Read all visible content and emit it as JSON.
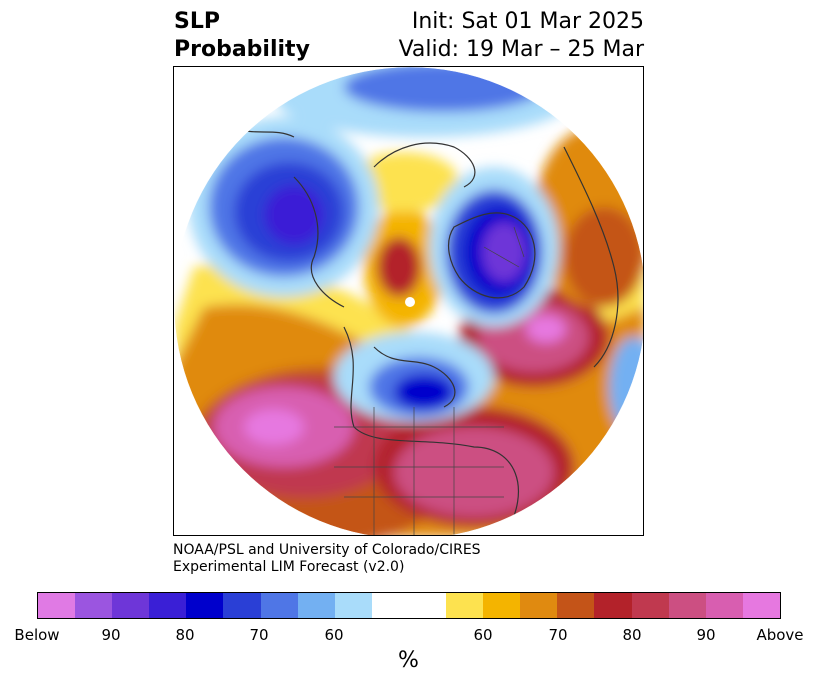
{
  "header": {
    "title_line1": "SLP",
    "title_line2": "Probability",
    "init": "Init: Sat 01 Mar 2025",
    "valid": "Valid: 19 Mar – 25 Mar"
  },
  "credit": {
    "line1": "NOAA/PSL and University of Colorado/CIRES",
    "line2": "Experimental LIM Forecast (v2.0)"
  },
  "colorbar": {
    "colors": [
      "#e07ae4",
      "#9b55e0",
      "#6e36d8",
      "#3a1fd6",
      "#0000cc",
      "#2a3fd6",
      "#4f76e6",
      "#73b0f2",
      "#a9dcfa",
      "#ffffff",
      "#ffffff",
      "#fde24f",
      "#f4b400",
      "#e08a10",
      "#c45418",
      "#b3222a",
      "#c0394f",
      "#cc4f82",
      "#d85eb0",
      "#e678e0"
    ],
    "ticks": [
      "Below",
      "90",
      "80",
      "70",
      "60",
      "60",
      "70",
      "80",
      "90",
      "Above"
    ],
    "unit": "%"
  },
  "map": {
    "projection": "north-polar-stereographic",
    "field": "sea level pressure probability",
    "features": [
      "coastlines",
      "country-borders",
      "state-borders"
    ]
  }
}
